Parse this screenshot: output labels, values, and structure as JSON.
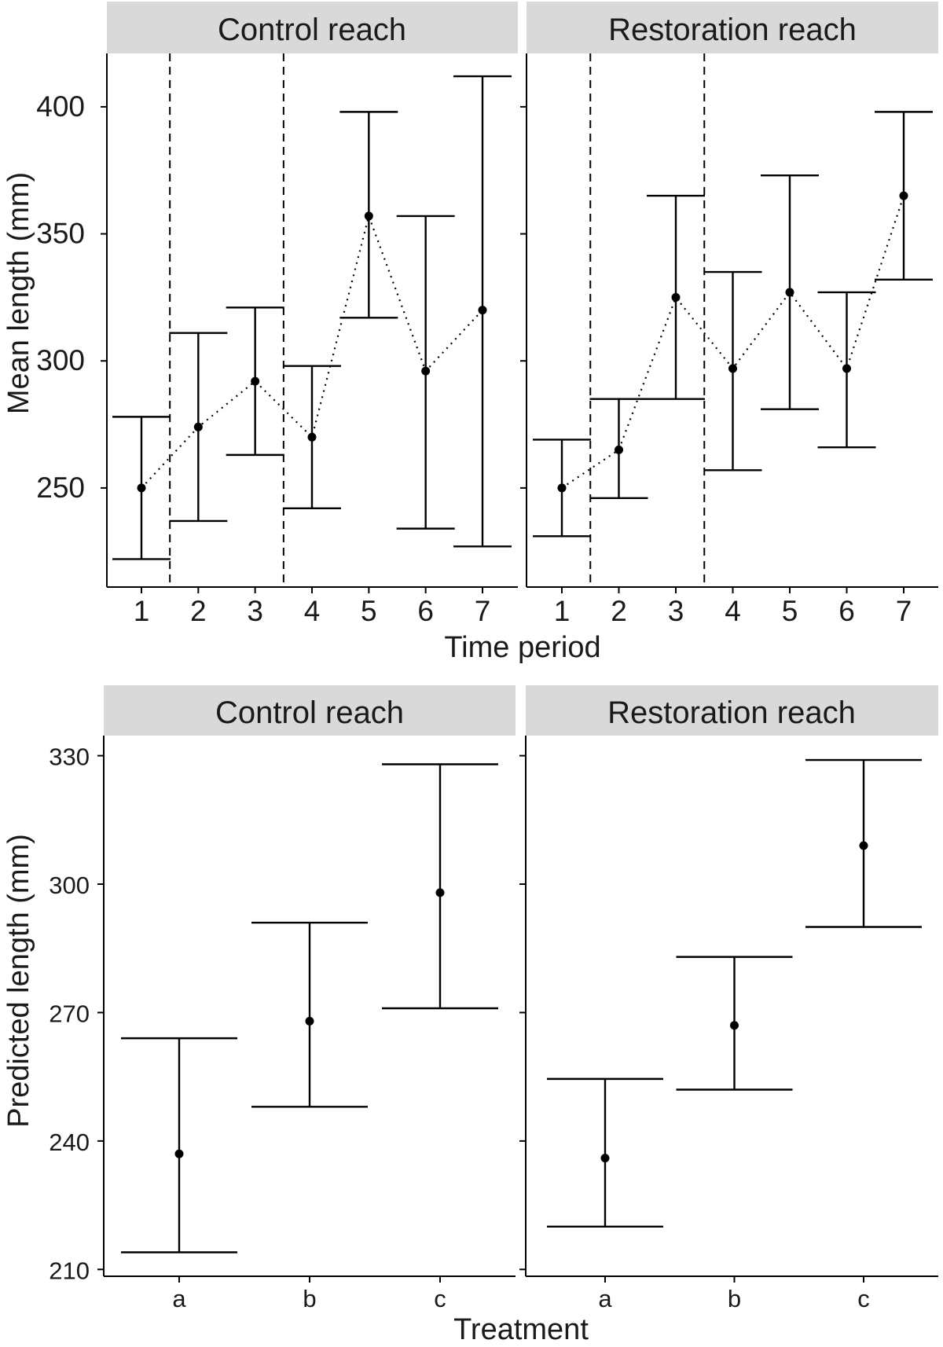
{
  "figure": {
    "top": {
      "panels": [
        "Control reach",
        "Restoration reach"
      ],
      "xlabel": "Time period",
      "ylabel": "Mean length (mm)"
    },
    "bottom": {
      "panels": [
        "Control reach",
        "Restoration reach"
      ],
      "xlabel": "Treatment",
      "ylabel": "Predicted length (mm)"
    }
  },
  "chart_data": [
    {
      "type": "scatter",
      "title": "Control reach",
      "xlabel": "Time period",
      "ylabel": "Mean length (mm)",
      "categories": [
        "1",
        "2",
        "3",
        "4",
        "5",
        "6",
        "7"
      ],
      "values": [
        250,
        274,
        292,
        270,
        357,
        296,
        320
      ],
      "lower": [
        222,
        237,
        263,
        242,
        317,
        234,
        227
      ],
      "upper": [
        278,
        311,
        321,
        298,
        398,
        357,
        412
      ],
      "ylim": [
        211,
        421
      ],
      "yticks": [
        250,
        300,
        350,
        400
      ],
      "period_breaks_after": [
        1,
        3
      ],
      "connector": "dotted"
    },
    {
      "type": "scatter",
      "title": "Restoration reach",
      "xlabel": "Time period",
      "ylabel": "Mean length (mm)",
      "categories": [
        "1",
        "2",
        "3",
        "4",
        "5",
        "6",
        "7"
      ],
      "values": [
        250,
        265,
        325,
        297,
        327,
        297,
        365
      ],
      "lower": [
        231,
        246,
        285,
        257,
        281,
        266,
        332
      ],
      "upper": [
        269,
        285,
        365,
        335,
        373,
        327,
        398
      ],
      "ylim": [
        211,
        421
      ],
      "yticks": [
        250,
        300,
        350,
        400
      ],
      "period_breaks_after": [
        1,
        3
      ],
      "connector": "dotted"
    },
    {
      "type": "scatter",
      "title": "Control reach",
      "xlabel": "Treatment",
      "ylabel": "Predicted length (mm)",
      "categories": [
        "a",
        "b",
        "c"
      ],
      "values": [
        237,
        268,
        298
      ],
      "lower": [
        214,
        248,
        271
      ],
      "upper": [
        264,
        291,
        328
      ],
      "ylim": [
        208.4,
        334.7
      ],
      "yticks": [
        210,
        240,
        270,
        300,
        330
      ]
    },
    {
      "type": "scatter",
      "title": "Restoration reach",
      "xlabel": "Treatment",
      "ylabel": "Predicted length (mm)",
      "categories": [
        "a",
        "b",
        "c"
      ],
      "values": [
        236,
        267,
        309
      ],
      "lower": [
        220,
        252,
        290
      ],
      "upper": [
        254.5,
        283,
        329
      ],
      "ylim": [
        208.4,
        334.7
      ],
      "yticks": [
        210,
        240,
        270,
        300,
        330
      ]
    }
  ]
}
